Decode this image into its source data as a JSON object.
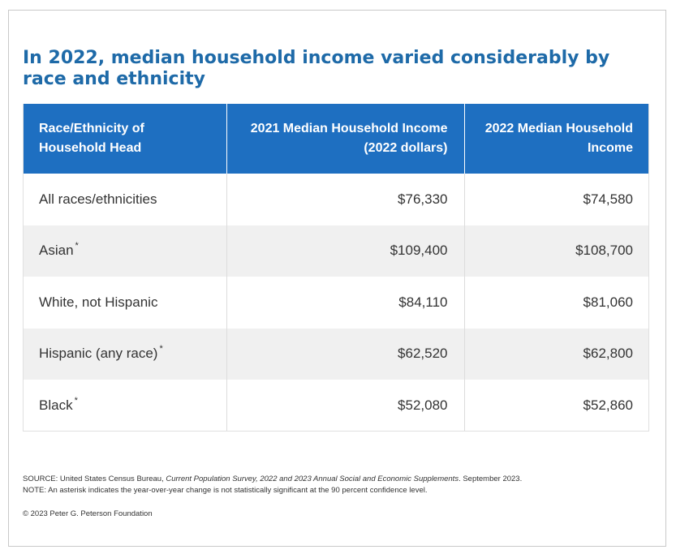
{
  "title": "In 2022, median household income varied considerably by race and ethnicity",
  "chart_data": {
    "type": "table",
    "columns": [
      "Race/Ethnicity of Household Head",
      "2021 Median Household Income (2022 dollars)",
      "2022 Median Household Income"
    ],
    "rows": [
      {
        "label": "All races/ethnicities",
        "asterisk": "",
        "v2021": "$76,330",
        "v2022": "$74,580"
      },
      {
        "label": "Asian",
        "asterisk": "*",
        "v2021": "$109,400",
        "v2022": "$108,700"
      },
      {
        "label": "White, not Hispanic",
        "asterisk": "",
        "v2021": "$84,110",
        "v2022": "$81,060"
      },
      {
        "label": "Hispanic (any race)",
        "asterisk": "*",
        "v2021": "$62,520",
        "v2022": "$62,800"
      },
      {
        "label": "Black",
        "asterisk": "*",
        "v2021": "$52,080",
        "v2022": "$52,860"
      }
    ]
  },
  "source": {
    "prefix": "SOURCE: United States Census Bureau, ",
    "italic": "Current Population Survey, 2022 and 2023 Annual Social and Economic Supplements",
    "suffix": ". September 2023."
  },
  "note": "NOTE: An asterisk indicates the year-over-year change is not statistically significant at the 90 percent confidence level.",
  "copyright": "© 2023 Peter G. Peterson Foundation",
  "colors": {
    "title": "#1e6aa8",
    "header_bg": "#1e6fc1",
    "alt_row": "#f0f0f0"
  }
}
